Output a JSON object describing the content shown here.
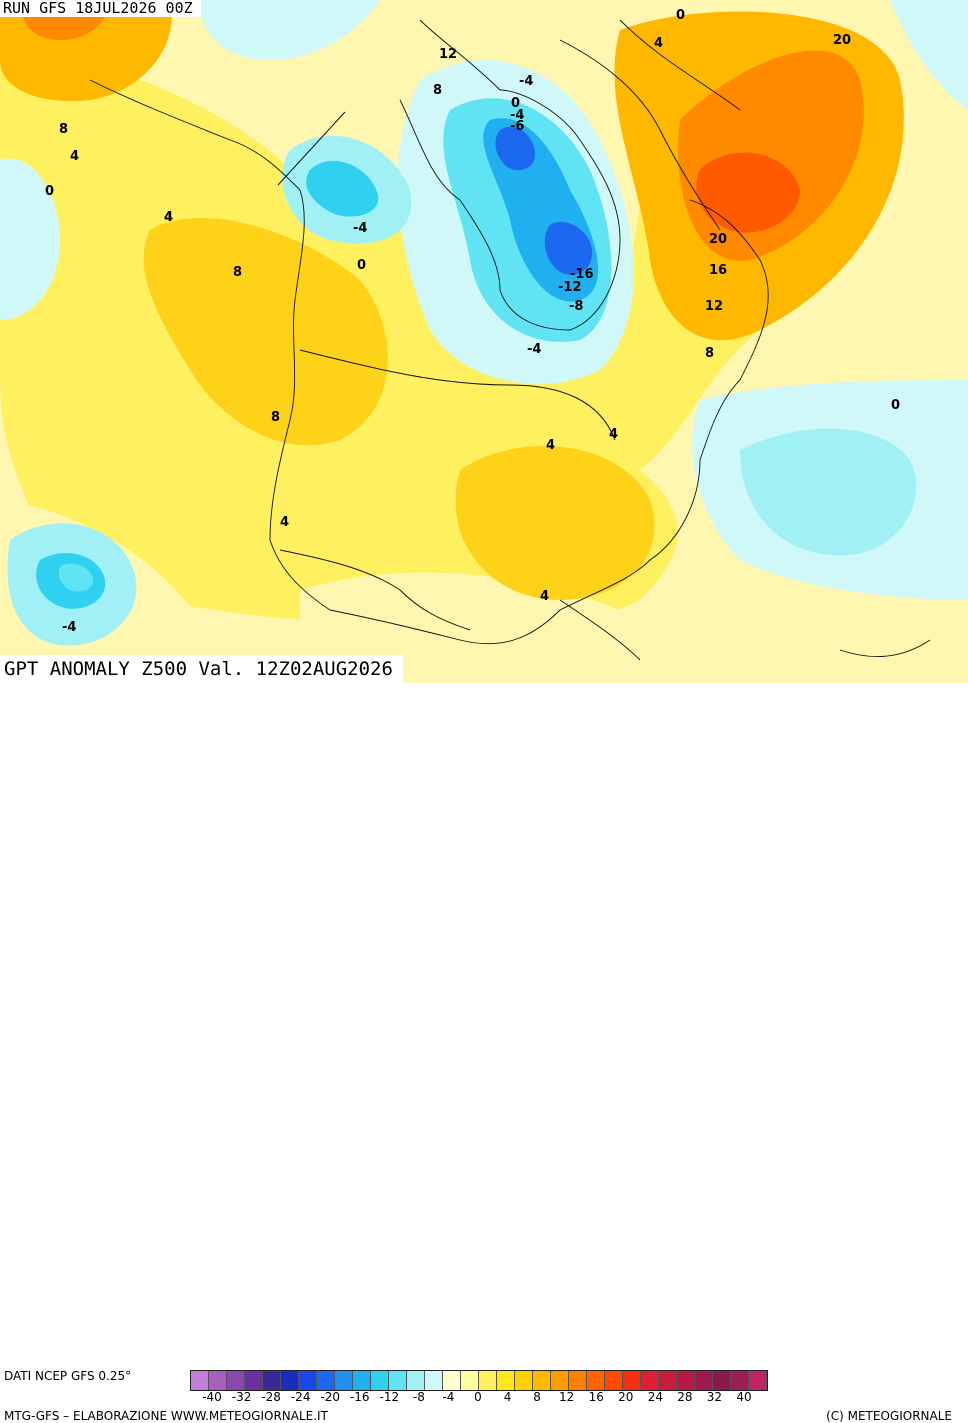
{
  "header": {
    "run": "RUN GFS 18JUL2026 00Z"
  },
  "map": {
    "title": "GPT ANOMALY Z500 Val. 12Z02AUG2026",
    "contour_labels": [
      "0",
      "4",
      "12",
      "8",
      "-4",
      "0",
      "-4",
      "-6",
      "4",
      "20",
      "8",
      "4",
      "0",
      "4",
      "8",
      "-4",
      "0",
      "-16",
      "-12",
      "-8",
      "20",
      "16",
      "12",
      "8",
      "-4",
      "8",
      "0",
      "4",
      "4",
      "4",
      "4",
      "-4"
    ]
  },
  "legend": {
    "source": "DATI NCEP GFS 0.25°",
    "ticks": [
      "-40",
      "-32",
      "-28",
      "-24",
      "-20",
      "-16",
      "-12",
      "-8",
      "-4",
      "0",
      "4",
      "8",
      "12",
      "16",
      "20",
      "24",
      "28",
      "32",
      "40"
    ],
    "colors": [
      "#c080d8",
      "#a860c0",
      "#8a48b0",
      "#6a30a0",
      "#3a2898",
      "#1a2cc0",
      "#1848e8",
      "#1c68f0",
      "#2090f0",
      "#20b0f0",
      "#30d0f0",
      "#60e4f4",
      "#a0f0f6",
      "#d0f8f8",
      "#ffffd0",
      "#ffffa0",
      "#fff060",
      "#ffe81a",
      "#ffd000",
      "#ffb800",
      "#ff9c00",
      "#ff8000",
      "#ff6400",
      "#ff4a00",
      "#f03010",
      "#e02030",
      "#c81c3c",
      "#b81848",
      "#a01850",
      "#8c1850",
      "#a01c58",
      "#c02468"
    ]
  },
  "footer": {
    "left": "MTG-GFS – ELABORAZIONE WWW.METEOGIORNALE.IT",
    "right": "(C) METEOGIORNALE"
  }
}
